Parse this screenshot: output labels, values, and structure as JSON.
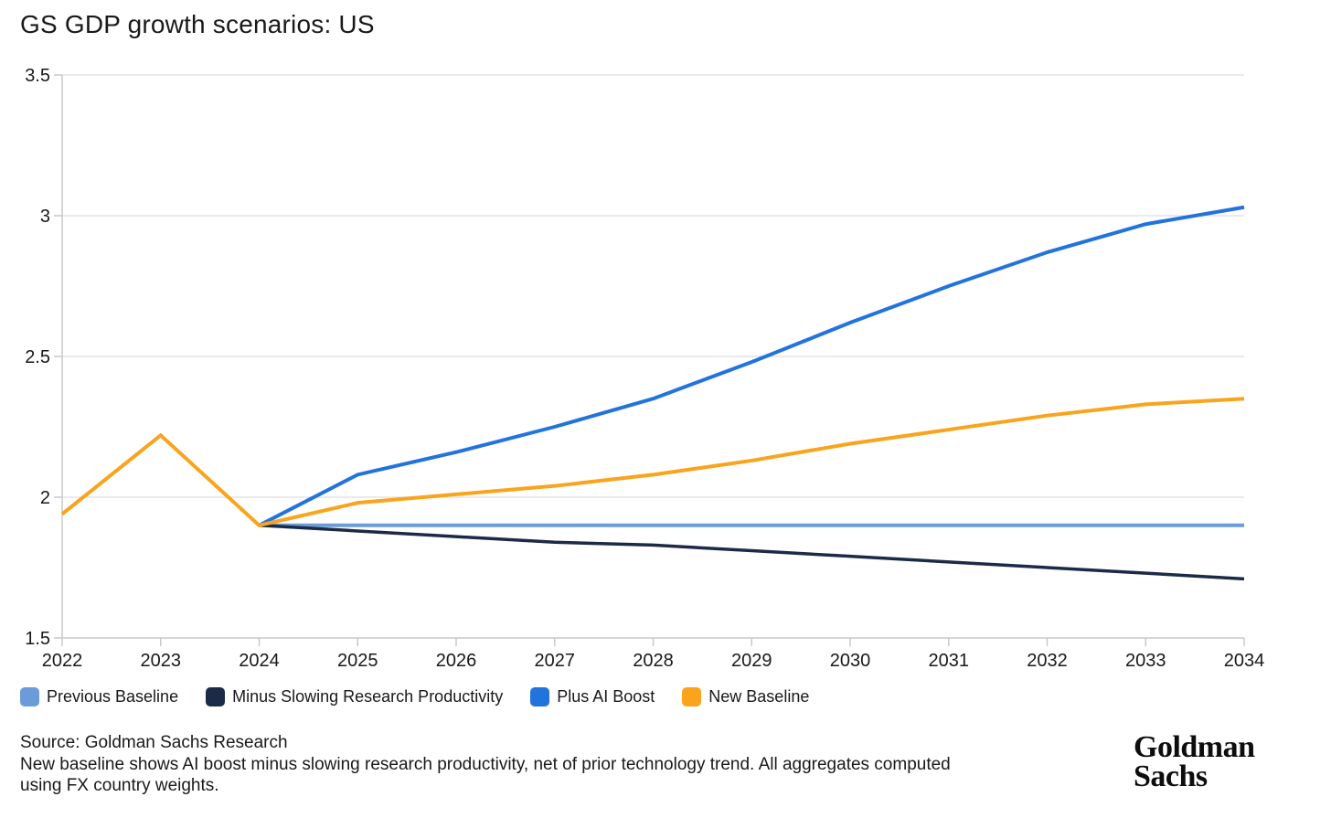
{
  "chart_data": {
    "type": "line",
    "title": "GS GDP growth scenarios: US",
    "xlabel": "",
    "ylabel": "",
    "xlim": [
      2022,
      2034
    ],
    "ylim": [
      1.5,
      3.5
    ],
    "xticks": [
      2022,
      2023,
      2024,
      2025,
      2026,
      2027,
      2028,
      2029,
      2030,
      2031,
      2032,
      2033,
      2034
    ],
    "yticks": [
      {
        "v": 3.5,
        "label": "3.5"
      },
      {
        "v": 3,
        "label": "3"
      },
      {
        "v": 2.5,
        "label": "2.5"
      },
      {
        "v": 2,
        "label": "2"
      },
      {
        "v": 1.5,
        "label": "1.5"
      }
    ],
    "grid": "horizontal",
    "legend_position": "bottom",
    "series": [
      {
        "name": "Previous Baseline",
        "color": "#6C9BD9",
        "width": 4,
        "years": [
          2024,
          2025,
          2026,
          2027,
          2028,
          2029,
          2030,
          2031,
          2032,
          2033,
          2034
        ],
        "values": [
          1.9,
          1.9,
          1.9,
          1.9,
          1.9,
          1.9,
          1.9,
          1.9,
          1.9,
          1.9,
          1.9
        ]
      },
      {
        "name": "Minus Slowing Research Productivity",
        "color": "#1B2B47",
        "width": 3.5,
        "years": [
          2024,
          2025,
          2026,
          2027,
          2028,
          2029,
          2030,
          2031,
          2032,
          2033,
          2034
        ],
        "values": [
          1.9,
          1.88,
          1.86,
          1.84,
          1.83,
          1.81,
          1.79,
          1.77,
          1.75,
          1.73,
          1.71
        ]
      },
      {
        "name": "Plus AI Boost",
        "color": "#2273DC",
        "width": 4,
        "years": [
          2024,
          2025,
          2026,
          2027,
          2028,
          2029,
          2030,
          2031,
          2032,
          2033,
          2034
        ],
        "values": [
          1.9,
          2.08,
          2.16,
          2.25,
          2.35,
          2.48,
          2.62,
          2.75,
          2.87,
          2.97,
          3.03
        ]
      },
      {
        "name": "New Baseline",
        "color": "#F9A41C",
        "width": 4,
        "years": [
          2022,
          2023,
          2024,
          2025,
          2026,
          2027,
          2028,
          2029,
          2030,
          2031,
          2032,
          2033,
          2034
        ],
        "values": [
          1.94,
          2.22,
          1.9,
          1.98,
          2.01,
          2.04,
          2.08,
          2.13,
          2.19,
          2.24,
          2.29,
          2.33,
          2.35
        ]
      }
    ]
  },
  "footer": {
    "source": "Source: Goldman Sachs Research",
    "note": "New baseline shows AI boost minus slowing research productivity, net of prior technology trend. All aggregates computed using FX country weights.",
    "logo_line1": "Goldman",
    "logo_line2": "Sachs"
  },
  "style": {
    "gridline_color": "#E3E3E3",
    "axis_color": "#C9C9C9",
    "text_color": "#191919"
  }
}
